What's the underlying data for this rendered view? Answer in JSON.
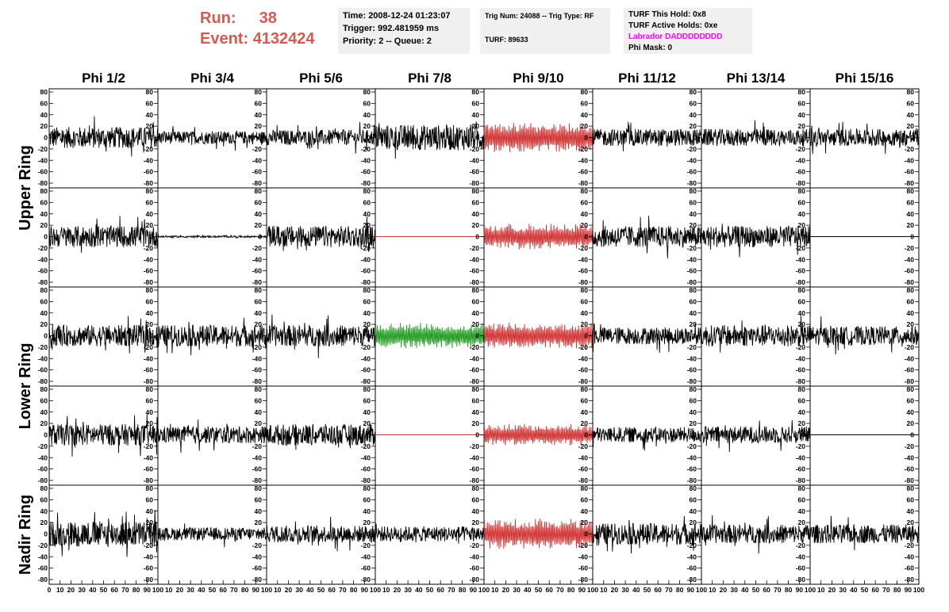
{
  "header": {
    "run_label": "Run:",
    "run_value": "38",
    "event_label": "Event:",
    "event_value": "4132424",
    "time": "Time: 2008-12-24 01:23:07",
    "trigger": "Trigger: 992.481959 ms",
    "priority": "Priority: 2 -- Queue: 2",
    "trig_num": "Trig Num: 24088 -- Trig Type: RF",
    "turf": "TURF: 89633",
    "turf_this_hold": "TURF This Hold: 0x8",
    "turf_active_holds": "TURF Active Holds: 0xe",
    "labrador": "Labrador DADDDDDDDD",
    "phi_mask": "Phi Mask: 0"
  },
  "colors": {
    "header_red": "#d35a50",
    "trace_black": "#000000",
    "trace_red": "#d03030",
    "trace_green": "#1f9a1f",
    "labrador_magenta": "#ff00ff",
    "info_bg": "#f0f0f0"
  },
  "chart_data": {
    "type": "line",
    "columns": [
      "Phi 1/2",
      "Phi 3/4",
      "Phi 5/6",
      "Phi 7/8",
      "Phi 9/10",
      "Phi 11/12",
      "Phi 13/14",
      "Phi 15/16"
    ],
    "ring_labels": [
      "Upper Ring",
      "Lower Ring",
      "Nadir Ring"
    ],
    "ylim": [
      -80,
      80
    ],
    "yticks": [
      -80,
      -60,
      -40,
      -20,
      0,
      20,
      40,
      60,
      80
    ],
    "xlim": [
      0,
      100
    ],
    "xticks": [
      0,
      10,
      20,
      30,
      40,
      50,
      60,
      70,
      80,
      90,
      100
    ],
    "grid": false,
    "approximate_amplitude": [
      [
        25,
        15,
        18,
        30,
        35,
        20,
        20,
        20
      ],
      [
        25,
        2,
        25,
        0,
        30,
        25,
        25,
        0
      ],
      [
        25,
        25,
        25,
        30,
        30,
        20,
        25,
        22
      ],
      [
        25,
        20,
        25,
        0,
        25,
        18,
        20,
        0
      ],
      [
        30,
        15,
        20,
        18,
        35,
        25,
        22,
        22
      ]
    ],
    "trace_color": [
      [
        "black",
        "black",
        "black",
        "black",
        "red",
        "black",
        "black",
        "black"
      ],
      [
        "black",
        "black",
        "black",
        "red",
        "red",
        "black",
        "black",
        "black"
      ],
      [
        "black",
        "black",
        "black",
        "green",
        "red",
        "black",
        "black",
        "black"
      ],
      [
        "black",
        "black",
        "black",
        "red",
        "red",
        "black",
        "black",
        "black"
      ],
      [
        "black",
        "black",
        "black",
        "black",
        "red",
        "black",
        "black",
        "black"
      ]
    ]
  }
}
